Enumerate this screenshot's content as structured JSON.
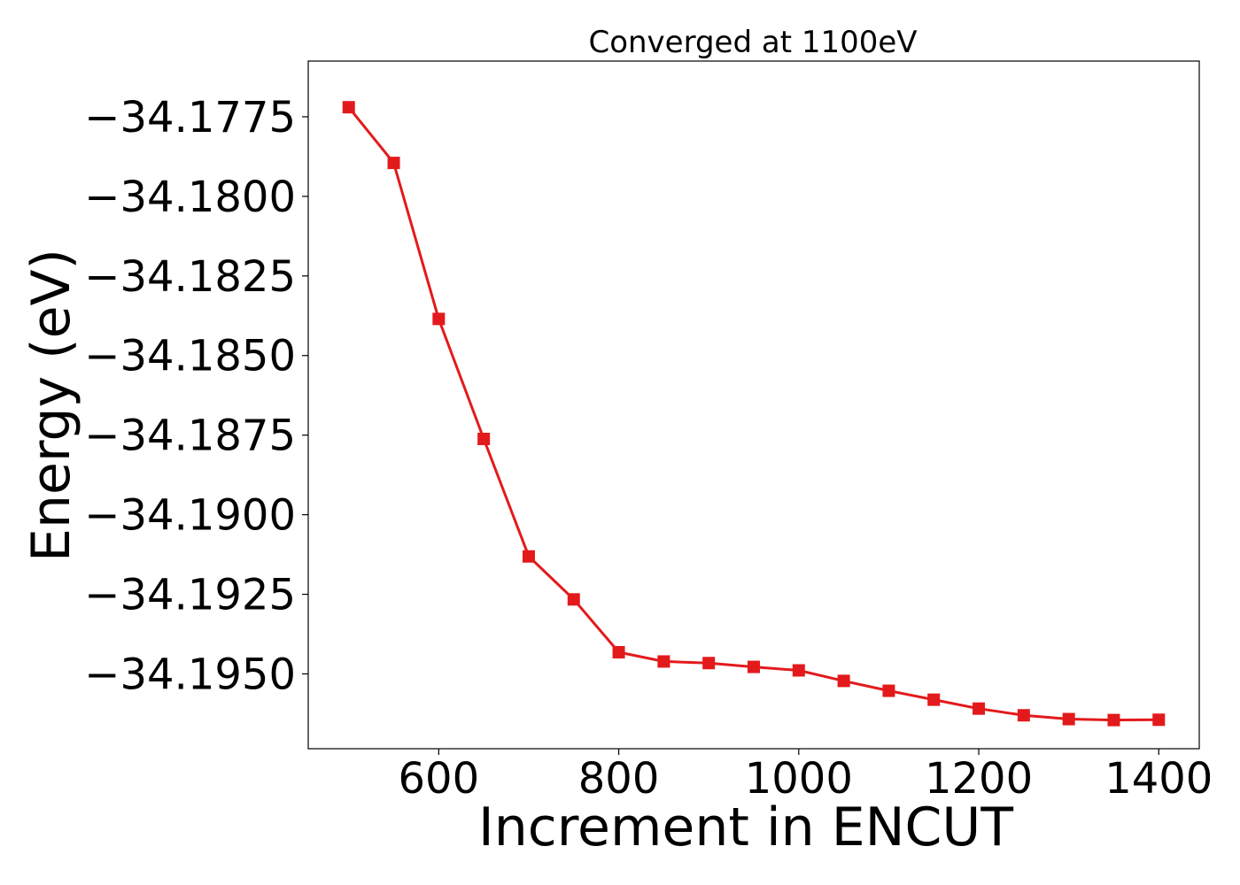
{
  "chart_data": {
    "type": "line",
    "title": "Converged at 1100eV",
    "xlabel": "Increment in ENCUT",
    "ylabel": "Energy (eV)",
    "xlim": [
      455,
      1445
    ],
    "ylim": [
      -34.19735,
      -34.17575
    ],
    "xticks": [
      600,
      800,
      1000,
      1200,
      1400
    ],
    "xtick_labels": [
      "600",
      "800",
      "1000",
      "1200",
      "1400"
    ],
    "yticks": [
      -34.1775,
      -34.18,
      -34.1825,
      -34.185,
      -34.1875,
      -34.19,
      -34.1925,
      -34.195
    ],
    "ytick_labels": [
      "−34.1775",
      "−34.1800",
      "−34.1825",
      "−34.1850",
      "−34.1875",
      "−34.1900",
      "−34.1925",
      "−34.1950"
    ],
    "grid": false,
    "series": [
      {
        "color": "#e31a1c",
        "marker": "square",
        "x": [
          500,
          550,
          600,
          650,
          700,
          750,
          800,
          850,
          900,
          950,
          1000,
          1050,
          1100,
          1150,
          1200,
          1250,
          1300,
          1350,
          1400
        ],
        "y": [
          -34.1772,
          -34.17895,
          -34.18385,
          -34.18762,
          -34.19131,
          -34.19266,
          -34.19432,
          -34.19461,
          -34.19466,
          -34.19478,
          -34.19489,
          -34.19522,
          -34.19553,
          -34.19581,
          -34.19609,
          -34.1963,
          -34.19642,
          -34.19645,
          -34.19644
        ]
      }
    ]
  }
}
